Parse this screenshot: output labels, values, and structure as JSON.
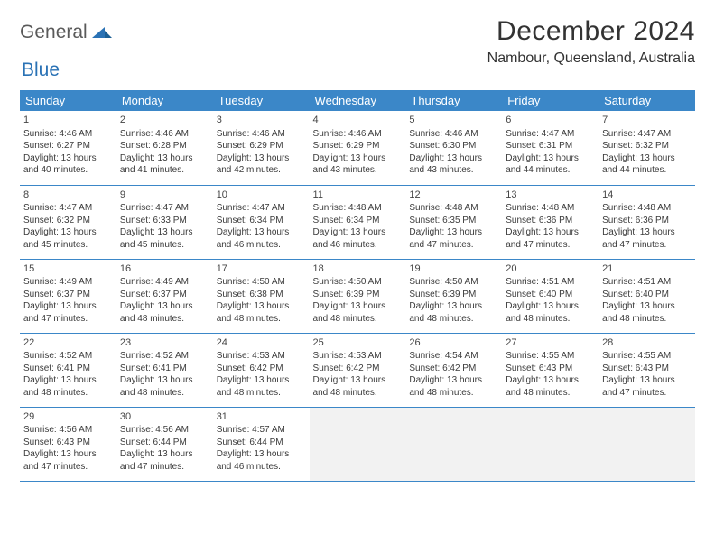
{
  "logo": {
    "text1": "General",
    "text2": "Blue"
  },
  "title": "December 2024",
  "location": "Nambour, Queensland, Australia",
  "colors": {
    "header_bg": "#3b87c8",
    "header_text": "#ffffff",
    "border": "#3b87c8",
    "empty_bg": "#f2f2f2",
    "logo_gray": "#5a5a5a",
    "logo_blue": "#2a72b5"
  },
  "weekdays": [
    "Sunday",
    "Monday",
    "Tuesday",
    "Wednesday",
    "Thursday",
    "Friday",
    "Saturday"
  ],
  "days": [
    {
      "n": 1,
      "sr": "4:46 AM",
      "ss": "6:27 PM",
      "dl": "13 hours and 40 minutes."
    },
    {
      "n": 2,
      "sr": "4:46 AM",
      "ss": "6:28 PM",
      "dl": "13 hours and 41 minutes."
    },
    {
      "n": 3,
      "sr": "4:46 AM",
      "ss": "6:29 PM",
      "dl": "13 hours and 42 minutes."
    },
    {
      "n": 4,
      "sr": "4:46 AM",
      "ss": "6:29 PM",
      "dl": "13 hours and 43 minutes."
    },
    {
      "n": 5,
      "sr": "4:46 AM",
      "ss": "6:30 PM",
      "dl": "13 hours and 43 minutes."
    },
    {
      "n": 6,
      "sr": "4:47 AM",
      "ss": "6:31 PM",
      "dl": "13 hours and 44 minutes."
    },
    {
      "n": 7,
      "sr": "4:47 AM",
      "ss": "6:32 PM",
      "dl": "13 hours and 44 minutes."
    },
    {
      "n": 8,
      "sr": "4:47 AM",
      "ss": "6:32 PM",
      "dl": "13 hours and 45 minutes."
    },
    {
      "n": 9,
      "sr": "4:47 AM",
      "ss": "6:33 PM",
      "dl": "13 hours and 45 minutes."
    },
    {
      "n": 10,
      "sr": "4:47 AM",
      "ss": "6:34 PM",
      "dl": "13 hours and 46 minutes."
    },
    {
      "n": 11,
      "sr": "4:48 AM",
      "ss": "6:34 PM",
      "dl": "13 hours and 46 minutes."
    },
    {
      "n": 12,
      "sr": "4:48 AM",
      "ss": "6:35 PM",
      "dl": "13 hours and 47 minutes."
    },
    {
      "n": 13,
      "sr": "4:48 AM",
      "ss": "6:36 PM",
      "dl": "13 hours and 47 minutes."
    },
    {
      "n": 14,
      "sr": "4:48 AM",
      "ss": "6:36 PM",
      "dl": "13 hours and 47 minutes."
    },
    {
      "n": 15,
      "sr": "4:49 AM",
      "ss": "6:37 PM",
      "dl": "13 hours and 47 minutes."
    },
    {
      "n": 16,
      "sr": "4:49 AM",
      "ss": "6:37 PM",
      "dl": "13 hours and 48 minutes."
    },
    {
      "n": 17,
      "sr": "4:50 AM",
      "ss": "6:38 PM",
      "dl": "13 hours and 48 minutes."
    },
    {
      "n": 18,
      "sr": "4:50 AM",
      "ss": "6:39 PM",
      "dl": "13 hours and 48 minutes."
    },
    {
      "n": 19,
      "sr": "4:50 AM",
      "ss": "6:39 PM",
      "dl": "13 hours and 48 minutes."
    },
    {
      "n": 20,
      "sr": "4:51 AM",
      "ss": "6:40 PM",
      "dl": "13 hours and 48 minutes."
    },
    {
      "n": 21,
      "sr": "4:51 AM",
      "ss": "6:40 PM",
      "dl": "13 hours and 48 minutes."
    },
    {
      "n": 22,
      "sr": "4:52 AM",
      "ss": "6:41 PM",
      "dl": "13 hours and 48 minutes."
    },
    {
      "n": 23,
      "sr": "4:52 AM",
      "ss": "6:41 PM",
      "dl": "13 hours and 48 minutes."
    },
    {
      "n": 24,
      "sr": "4:53 AM",
      "ss": "6:42 PM",
      "dl": "13 hours and 48 minutes."
    },
    {
      "n": 25,
      "sr": "4:53 AM",
      "ss": "6:42 PM",
      "dl": "13 hours and 48 minutes."
    },
    {
      "n": 26,
      "sr": "4:54 AM",
      "ss": "6:42 PM",
      "dl": "13 hours and 48 minutes."
    },
    {
      "n": 27,
      "sr": "4:55 AM",
      "ss": "6:43 PM",
      "dl": "13 hours and 48 minutes."
    },
    {
      "n": 28,
      "sr": "4:55 AM",
      "ss": "6:43 PM",
      "dl": "13 hours and 47 minutes."
    },
    {
      "n": 29,
      "sr": "4:56 AM",
      "ss": "6:43 PM",
      "dl": "13 hours and 47 minutes."
    },
    {
      "n": 30,
      "sr": "4:56 AM",
      "ss": "6:44 PM",
      "dl": "13 hours and 47 minutes."
    },
    {
      "n": 31,
      "sr": "4:57 AM",
      "ss": "6:44 PM",
      "dl": "13 hours and 46 minutes."
    }
  ],
  "labels": {
    "sunrise": "Sunrise:",
    "sunset": "Sunset:",
    "daylight": "Daylight:"
  },
  "layout": {
    "first_weekday_index": 0,
    "trailing_empty": 4
  }
}
